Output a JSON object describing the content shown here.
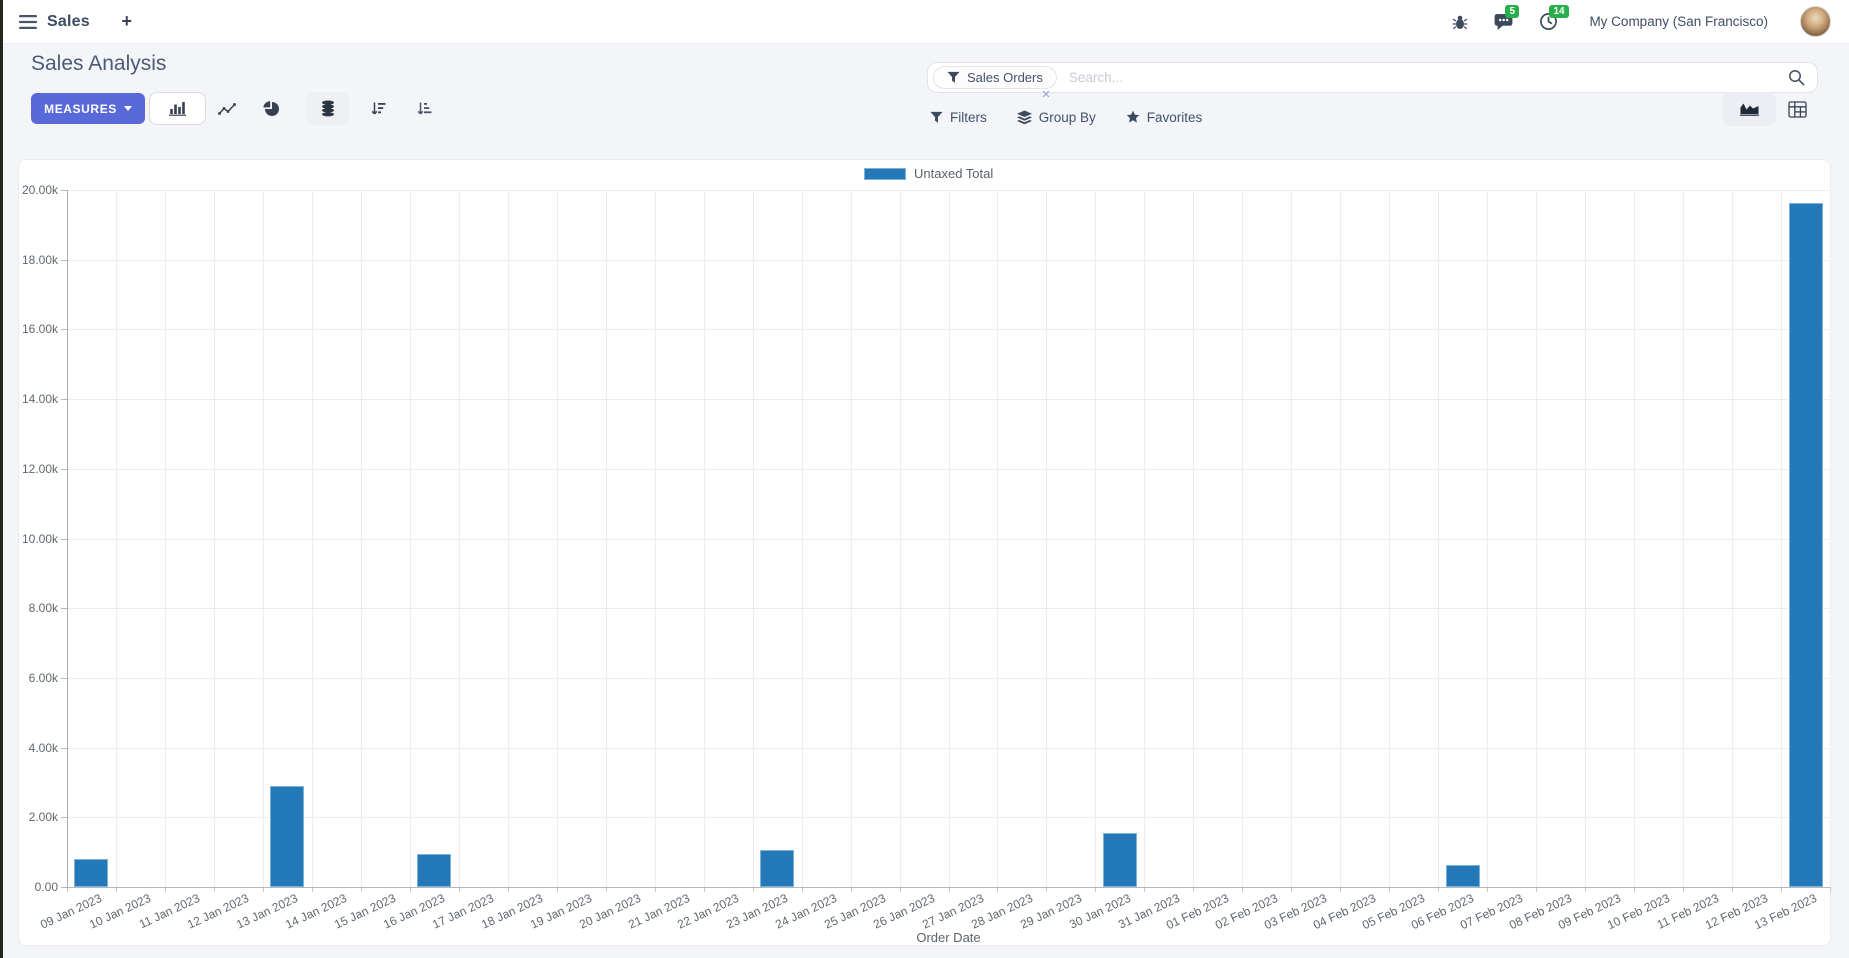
{
  "navbar": {
    "app_name": "Sales",
    "plus_label": "+",
    "message_badge": "5",
    "activity_badge": "14",
    "company": "My Company (San Francisco)"
  },
  "control_panel": {
    "title": "Sales Analysis",
    "measures_label": "MEASURES",
    "search": {
      "facet": "Sales Orders",
      "remove_glyph": "✕",
      "placeholder": "Search..."
    },
    "filters_label": "Filters",
    "groupby_label": "Group By",
    "favorites_label": "Favorites"
  },
  "colors": {
    "accent": "#5a69d9",
    "bar_fill": "#2379b8",
    "bar_border": "#7db2d9",
    "badge_green": "#28ae4b"
  },
  "chart_data": {
    "type": "bar",
    "title": "",
    "legend_position": "top",
    "grid": true,
    "xlabel": "Order Date",
    "ylabel": "",
    "ylim": [
      0,
      20000
    ],
    "ytick_labels": [
      "0.00",
      "2.00k",
      "4.00k",
      "6.00k",
      "8.00k",
      "10.00k",
      "12.00k",
      "14.00k",
      "16.00k",
      "18.00k",
      "20.00k"
    ],
    "categories": [
      "09 Jan 2023",
      "10 Jan 2023",
      "11 Jan 2023",
      "12 Jan 2023",
      "13 Jan 2023",
      "14 Jan 2023",
      "15 Jan 2023",
      "16 Jan 2023",
      "17 Jan 2023",
      "18 Jan 2023",
      "19 Jan 2023",
      "20 Jan 2023",
      "21 Jan 2023",
      "22 Jan 2023",
      "23 Jan 2023",
      "24 Jan 2023",
      "25 Jan 2023",
      "26 Jan 2023",
      "27 Jan 2023",
      "28 Jan 2023",
      "29 Jan 2023",
      "30 Jan 2023",
      "31 Jan 2023",
      "01 Feb 2023",
      "02 Feb 2023",
      "03 Feb 2023",
      "04 Feb 2023",
      "05 Feb 2023",
      "06 Feb 2023",
      "07 Feb 2023",
      "08 Feb 2023",
      "09 Feb 2023",
      "10 Feb 2023",
      "11 Feb 2023",
      "12 Feb 2023",
      "13 Feb 2023"
    ],
    "series": [
      {
        "name": "Untaxed Total",
        "color": "#2379b8",
        "border_color": "#7db2d9",
        "values": [
          800,
          0,
          0,
          0,
          2900,
          0,
          0,
          950,
          0,
          0,
          0,
          0,
          0,
          0,
          1060,
          0,
          0,
          0,
          0,
          0,
          0,
          1550,
          0,
          0,
          0,
          0,
          0,
          0,
          630,
          0,
          0,
          0,
          0,
          0,
          0,
          19630
        ]
      }
    ]
  }
}
